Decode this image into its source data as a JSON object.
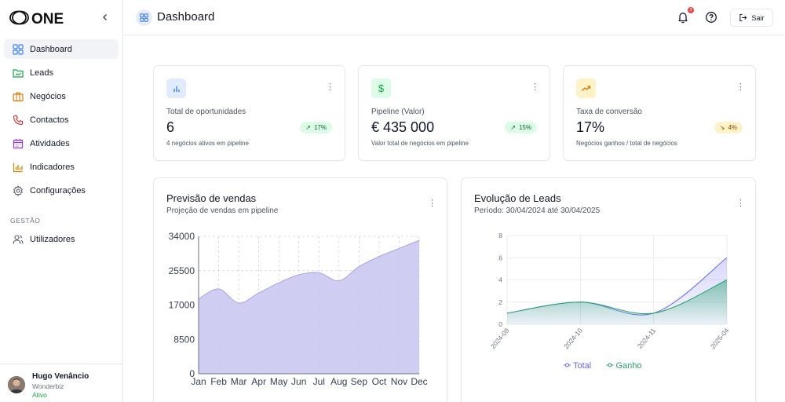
{
  "app": {
    "logo_text": "ONE"
  },
  "sidebar": {
    "items": [
      {
        "label": "Dashboard",
        "icon": "dashboard-grid-icon",
        "active": true
      },
      {
        "label": "Leads",
        "icon": "folder-chart-icon"
      },
      {
        "label": "Negócios",
        "icon": "briefcase-icon"
      },
      {
        "label": "Contactos",
        "icon": "phone-icon"
      },
      {
        "label": "Atividades",
        "icon": "calendar-icon"
      },
      {
        "label": "Indicadores",
        "icon": "bar-chart-icon"
      },
      {
        "label": "Configurações",
        "icon": "gear-icon"
      }
    ],
    "section_title": "GESTÃO",
    "section_items": [
      {
        "label": "Utilizadores",
        "icon": "users-icon"
      }
    ],
    "user": {
      "name": "Hugo Venâncio",
      "org": "Wonderbiz",
      "status": "Ativo"
    }
  },
  "header": {
    "title": "Dashboard",
    "notifications_count": "3",
    "logout_label": "Sair"
  },
  "stats": [
    {
      "label": "Total de oportunidades",
      "value": "6",
      "change": "17%",
      "trend": "up",
      "desc": "4 negócios ativos em pipeline",
      "color": "#3b82f6"
    },
    {
      "label": "Pipeline (Valor)",
      "value": "€ 435 000",
      "change": "15%",
      "trend": "up",
      "desc": "Valor total de negócios em pipeline",
      "color": "#16a34a"
    },
    {
      "label": "Taxa de conversão",
      "value": "17%",
      "change": "4%",
      "trend": "down",
      "desc": "Negócios ganhos / total de negócios",
      "color": "#d97706"
    }
  ],
  "charts": {
    "sales": {
      "title": "Previsão de vendas",
      "subtitle": "Projeção de vendas em pipeline"
    },
    "leads": {
      "title": "Evolução de Leads",
      "subtitle": "Período: 30/04/2024 até 30/04/2025"
    }
  },
  "chart_data": [
    {
      "type": "area",
      "title": "Previsão de vendas",
      "categories": [
        "Jan",
        "Feb",
        "Mar",
        "Apr",
        "May",
        "Jun",
        "Jul",
        "Aug",
        "Sep",
        "Oct",
        "Nov",
        "Dec"
      ],
      "values": [
        18500,
        21000,
        17500,
        20000,
        22500,
        24500,
        25000,
        23000,
        26500,
        29000,
        31000,
        33000
      ],
      "ylim": [
        0,
        34000
      ],
      "yticks": [
        0,
        8500,
        17000,
        25500,
        34000
      ],
      "grid": true,
      "color": "#c7c5f0"
    },
    {
      "type": "area",
      "title": "Evolução de Leads",
      "categories": [
        "2024-09",
        "2024-10",
        "2024-11",
        "2025-04"
      ],
      "series": [
        {
          "name": "Total",
          "values": [
            1,
            2,
            1,
            6
          ],
          "color": "#6366f1"
        },
        {
          "name": "Ganho",
          "values": [
            1,
            2,
            1,
            4
          ],
          "color": "#22a06b"
        }
      ],
      "ylim": [
        0,
        8
      ],
      "yticks": [
        0,
        2,
        4,
        6,
        8
      ],
      "grid": true,
      "legend": "bottom"
    }
  ]
}
